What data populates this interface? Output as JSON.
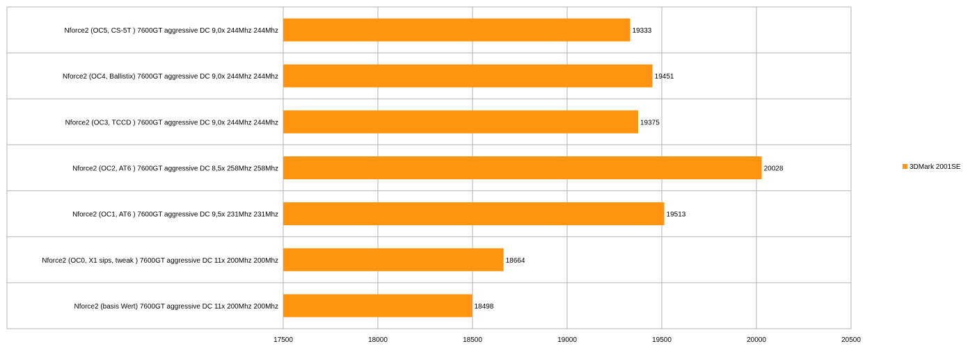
{
  "chart_data": {
    "type": "bar",
    "orientation": "horizontal",
    "title": "",
    "xlabel": "",
    "ylabel": "",
    "categories": [
      "Nforce2 (OC5, CS-5T )  7600GT  aggressive  DC  9,0x  244Mhz  244Mhz",
      "Nforce2 (OC4, Ballistix)  7600GT  aggressive  DC  9,0x  244Mhz  244Mhz",
      "Nforce2 (OC3, TCCD )  7600GT  aggressive  DC  9,0x  244Mhz  244Mhz",
      "Nforce2 (OC2, AT6 )  7600GT  aggressive  DC  8,5x  258Mhz  258Mhz",
      "Nforce2 (OC1, AT6 )  7600GT  aggressive  DC  9,5x  231Mhz  231Mhz",
      "Nforce2 (OC0, X1 sips, tweak )  7600GT  aggressive  DC    11x  200Mhz  200Mhz",
      "Nforce2 (basis Wert)  7600GT  aggressive  DC    11x  200Mhz  200Mhz"
    ],
    "series": [
      {
        "name": "3DMark 2001SE",
        "color": "#ff9410",
        "values": [
          19333,
          19451,
          19375,
          20028,
          19513,
          18664,
          18498
        ]
      }
    ],
    "xlim": [
      17500,
      20500
    ],
    "ticks": [
      "17500",
      "18000",
      "18500",
      "19000",
      "19500",
      "20000",
      "20500"
    ],
    "grid": true,
    "legend_position": "right"
  }
}
